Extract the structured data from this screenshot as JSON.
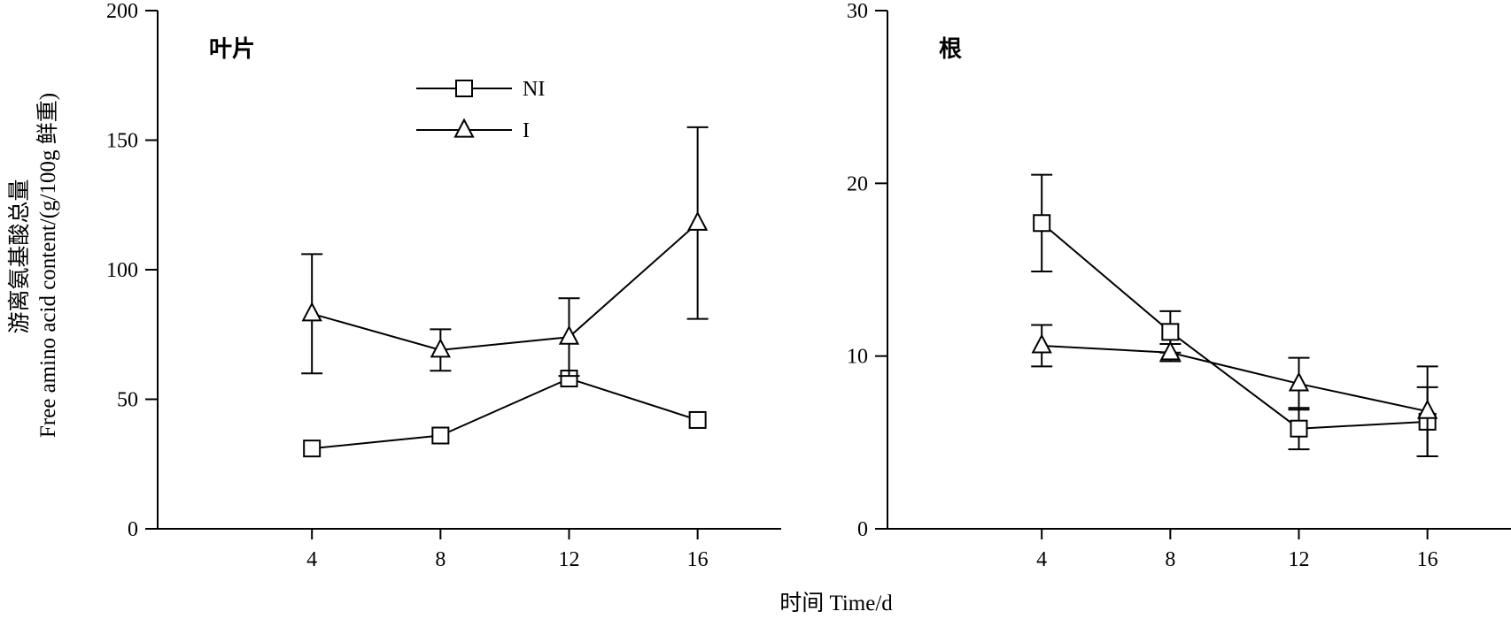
{
  "chart_data": [
    {
      "type": "line",
      "panel_label": "叶片",
      "ylabel_line1": "游离氨基酸总量",
      "ylabel_line2": "Free amino acid content/(g/100g 鲜重)",
      "xlabel": "时间 Time/d",
      "x": [
        4,
        8,
        12,
        16
      ],
      "xlim": [
        -0.8,
        18.6
      ],
      "ylim": [
        0,
        200
      ],
      "yticks": [
        0,
        50,
        100,
        150,
        200
      ],
      "xticks": [
        4,
        8,
        12,
        16
      ],
      "legend": "top-center",
      "grid": false,
      "series": [
        {
          "name": "NI",
          "marker": "square",
          "values": [
            31,
            36,
            58,
            42
          ],
          "errors": [
            0,
            0,
            0,
            0
          ]
        },
        {
          "name": "I",
          "marker": "triangle",
          "values": [
            83,
            69,
            74,
            118
          ],
          "errors": [
            23,
            8,
            15,
            37
          ]
        }
      ]
    },
    {
      "type": "line",
      "panel_label": "根",
      "xlim": [
        -0.8,
        18.6
      ],
      "ylim": [
        0,
        30
      ],
      "yticks": [
        0,
        10,
        20,
        30
      ],
      "xticks": [
        4,
        8,
        12,
        16
      ],
      "x": [
        4,
        8,
        12,
        16
      ],
      "grid": false,
      "series": [
        {
          "name": "NI",
          "marker": "square",
          "values": [
            17.7,
            11.4,
            5.8,
            6.2
          ],
          "errors": [
            2.8,
            1.2,
            1.2,
            2.0
          ]
        },
        {
          "name": "I",
          "marker": "triangle",
          "values": [
            10.6,
            10.2,
            8.4,
            6.8
          ],
          "errors": [
            1.2,
            0.5,
            1.5,
            2.6
          ]
        }
      ]
    }
  ]
}
